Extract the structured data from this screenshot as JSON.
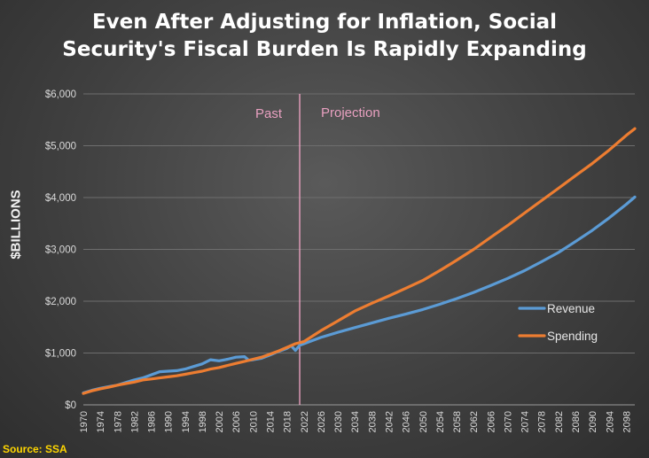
{
  "chart_data": {
    "type": "line",
    "title": "Even After Adjusting for Inflation, Social\nSecurity's Fiscal Burden Is Rapidly Expanding",
    "xlabel": "",
    "ylabel": "$BILLIONS",
    "ylim": [
      0,
      6000
    ],
    "xlim": [
      1970,
      2100
    ],
    "y_ticks": [
      0,
      1000,
      2000,
      3000,
      4000,
      5000,
      6000
    ],
    "y_tick_labels": [
      "$0",
      "$1,000",
      "$2,000",
      "$3,000",
      "$4,000",
      "$5,000",
      "$6,000"
    ],
    "x_tick_labels": [
      "1970",
      "1974",
      "1978",
      "1982",
      "1986",
      "1990",
      "1994",
      "1998",
      "2002",
      "2006",
      "2010",
      "2014",
      "2018",
      "2022",
      "2026",
      "2030",
      "2034",
      "2038",
      "2042",
      "2046",
      "2050",
      "2054",
      "2058",
      "2062",
      "2066",
      "2070",
      "2074",
      "2078",
      "2082",
      "2086",
      "2090",
      "2094",
      "2098"
    ],
    "grid": true,
    "legend_position": "right",
    "divider": {
      "x": 2021,
      "left_label": "Past",
      "right_label": "Projection",
      "color": "#f4a6c8"
    },
    "series": [
      {
        "name": "Revenue",
        "color": "#5b9bd5",
        "x": [
          1970,
          1972,
          1974,
          1976,
          1978,
          1980,
          1982,
          1984,
          1986,
          1988,
          1990,
          1992,
          1994,
          1996,
          1998,
          2000,
          2002,
          2004,
          2006,
          2008,
          2009,
          2010,
          2012,
          2014,
          2016,
          2018,
          2019,
          2020,
          2021,
          2022,
          2026,
          2030,
          2034,
          2038,
          2042,
          2046,
          2050,
          2054,
          2058,
          2062,
          2066,
          2070,
          2074,
          2078,
          2082,
          2086,
          2090,
          2094,
          2098,
          2100
        ],
        "values": [
          230,
          280,
          320,
          350,
          380,
          430,
          480,
          520,
          580,
          640,
          650,
          660,
          690,
          740,
          790,
          870,
          850,
          880,
          920,
          930,
          860,
          870,
          900,
          960,
          1030,
          1090,
          1140,
          1050,
          1150,
          1180,
          1300,
          1400,
          1490,
          1580,
          1670,
          1750,
          1840,
          1940,
          2050,
          2170,
          2300,
          2440,
          2590,
          2760,
          2940,
          3150,
          3370,
          3610,
          3870,
          4010
        ]
      },
      {
        "name": "Spending",
        "color": "#ed7d31",
        "x": [
          1970,
          1972,
          1974,
          1976,
          1978,
          1980,
          1982,
          1984,
          1986,
          1988,
          1990,
          1992,
          1994,
          1996,
          1998,
          2000,
          2002,
          2004,
          2006,
          2008,
          2010,
          2012,
          2014,
          2016,
          2018,
          2020,
          2021,
          2022,
          2026,
          2030,
          2034,
          2038,
          2042,
          2046,
          2050,
          2054,
          2058,
          2062,
          2066,
          2070,
          2074,
          2078,
          2082,
          2086,
          2090,
          2094,
          2098,
          2100
        ],
        "values": [
          220,
          270,
          310,
          340,
          380,
          410,
          440,
          480,
          500,
          520,
          540,
          560,
          590,
          620,
          650,
          690,
          720,
          760,
          800,
          840,
          880,
          920,
          980,
          1040,
          1110,
          1180,
          1200,
          1220,
          1430,
          1620,
          1810,
          1960,
          2100,
          2250,
          2400,
          2590,
          2790,
          3000,
          3230,
          3460,
          3700,
          3940,
          4180,
          4420,
          4660,
          4920,
          5200,
          5330
        ]
      }
    ]
  },
  "source": "Source: SSA"
}
